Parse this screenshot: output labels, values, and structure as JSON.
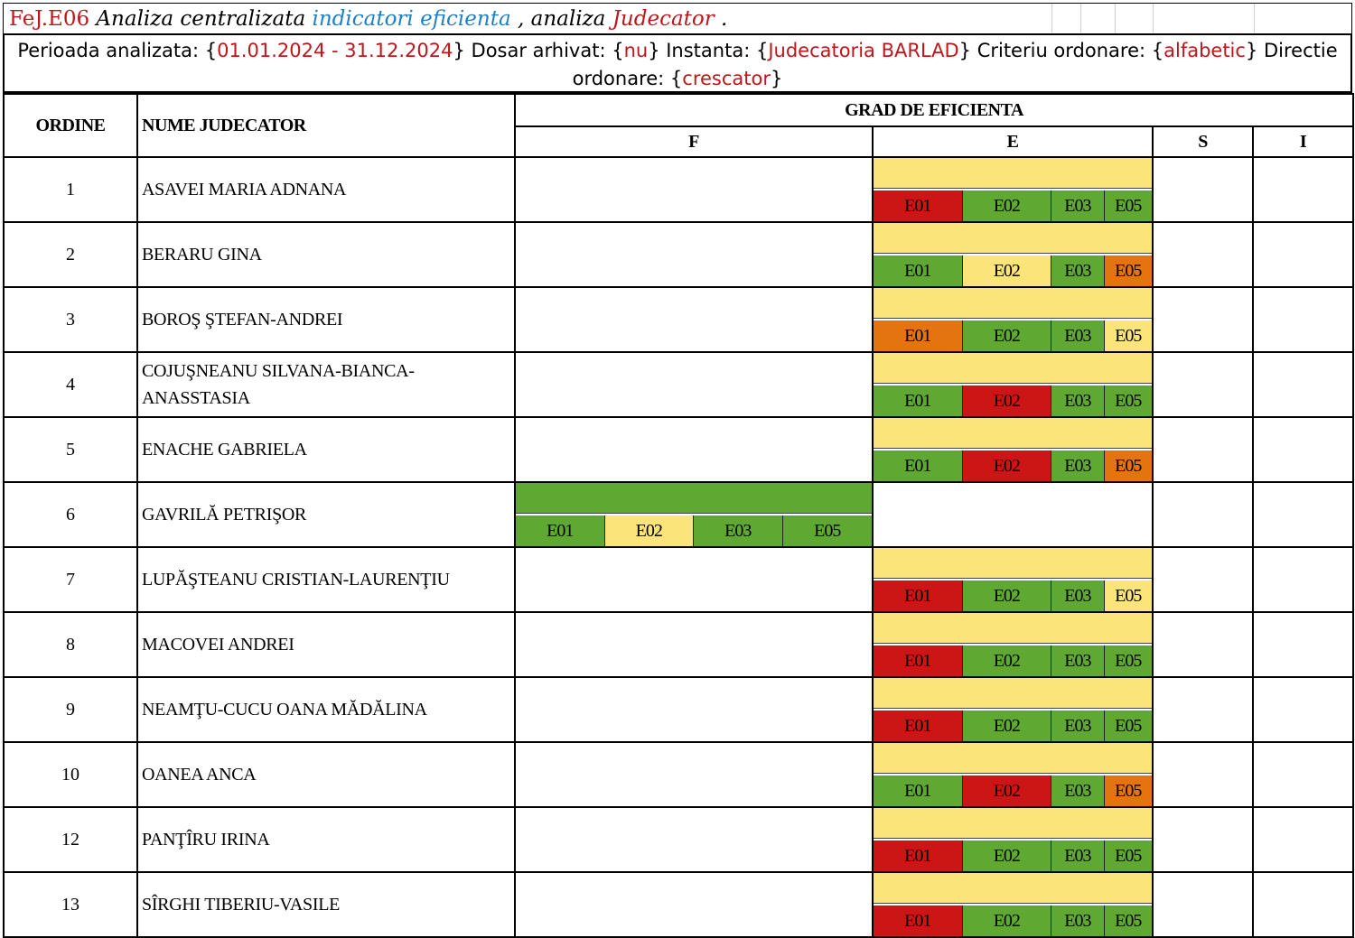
{
  "header": {
    "code": "FeJ.E06",
    "part1": " Analiza centralizata ",
    "part2": "indicatori eficienta",
    "part3": " , analiza ",
    "part4": "Judecator",
    "part5": " ."
  },
  "filters": {
    "perioada_label": "Perioada analizata: {",
    "perioada": "01.01.2024 - 31.12.2024",
    "dosar_label": "} Dosar arhivat: {",
    "dosar": "nu",
    "instanta_label": "} Instanta: {",
    "instanta": "Judecatoria BARLAD",
    "criteriu_label": "} Criteriu ordonare: {",
    "criteriu": "alfabetic",
    "directie_label": "} Directie ordonare: {",
    "directie": "crescator",
    "close": "}"
  },
  "table": {
    "col_ordine": "ORDINE",
    "col_nume": "NUME JUDECATOR",
    "col_grad": "GRAD DE EFICIENTA",
    "grades": [
      "F",
      "E",
      "S",
      "I"
    ]
  },
  "colors": {
    "green": "#5fa932",
    "yellow": "#fbe47a",
    "red": "#cc1515",
    "orange": "#e3740f"
  },
  "rows": [
    {
      "ordine": "1",
      "nume": "ASAVEI MARIA ADNANA",
      "grade": "E",
      "overall": "yellow",
      "indicators": [
        {
          "label": "E01",
          "color": "red"
        },
        {
          "label": "E02",
          "color": "green"
        },
        {
          "label": "E03",
          "color": "green"
        },
        {
          "label": "E05",
          "color": "green"
        }
      ]
    },
    {
      "ordine": "2",
      "nume": "BERARU GINA",
      "grade": "E",
      "overall": "yellow",
      "indicators": [
        {
          "label": "E01",
          "color": "green"
        },
        {
          "label": "E02",
          "color": "yellow"
        },
        {
          "label": "E03",
          "color": "green"
        },
        {
          "label": "E05",
          "color": "orange"
        }
      ]
    },
    {
      "ordine": "3",
      "nume": "BOROŞ ŞTEFAN-ANDREI",
      "grade": "E",
      "overall": "yellow",
      "indicators": [
        {
          "label": "E01",
          "color": "orange"
        },
        {
          "label": "E02",
          "color": "green"
        },
        {
          "label": "E03",
          "color": "green"
        },
        {
          "label": "E05",
          "color": "yellow"
        }
      ]
    },
    {
      "ordine": "4",
      "nume": "COJUŞNEANU SILVANA-BIANCA-ANASSTASIA",
      "grade": "E",
      "overall": "yellow",
      "indicators": [
        {
          "label": "E01",
          "color": "green"
        },
        {
          "label": "E02",
          "color": "red"
        },
        {
          "label": "E03",
          "color": "green"
        },
        {
          "label": "E05",
          "color": "green"
        }
      ]
    },
    {
      "ordine": "5",
      "nume": "ENACHE GABRIELA",
      "grade": "E",
      "overall": "yellow",
      "indicators": [
        {
          "label": "E01",
          "color": "green"
        },
        {
          "label": "E02",
          "color": "red"
        },
        {
          "label": "E03",
          "color": "green"
        },
        {
          "label": "E05",
          "color": "orange"
        }
      ]
    },
    {
      "ordine": "6",
      "nume": "GAVRILĂ PETRIŞOR",
      "grade": "F",
      "overall": "green",
      "indicators": [
        {
          "label": "E01",
          "color": "green"
        },
        {
          "label": "E02",
          "color": "yellow"
        },
        {
          "label": "E03",
          "color": "green"
        },
        {
          "label": "E05",
          "color": "green"
        }
      ]
    },
    {
      "ordine": "7",
      "nume": "LUPĂŞTEANU CRISTIAN-LAURENŢIU",
      "grade": "E",
      "overall": "yellow",
      "indicators": [
        {
          "label": "E01",
          "color": "red"
        },
        {
          "label": "E02",
          "color": "green"
        },
        {
          "label": "E03",
          "color": "green"
        },
        {
          "label": "E05",
          "color": "yellow"
        }
      ]
    },
    {
      "ordine": "8",
      "nume": "MACOVEI ANDREI",
      "grade": "E",
      "overall": "yellow",
      "indicators": [
        {
          "label": "E01",
          "color": "red"
        },
        {
          "label": "E02",
          "color": "green"
        },
        {
          "label": "E03",
          "color": "green"
        },
        {
          "label": "E05",
          "color": "green"
        }
      ]
    },
    {
      "ordine": "9",
      "nume": "NEAMŢU-CUCU OANA MĂDĂLINA",
      "grade": "E",
      "overall": "yellow",
      "indicators": [
        {
          "label": "E01",
          "color": "red"
        },
        {
          "label": "E02",
          "color": "green"
        },
        {
          "label": "E03",
          "color": "green"
        },
        {
          "label": "E05",
          "color": "green"
        }
      ]
    },
    {
      "ordine": "10",
      "nume": "OANEA ANCA",
      "grade": "E",
      "overall": "yellow",
      "indicators": [
        {
          "label": "E01",
          "color": "green"
        },
        {
          "label": "E02",
          "color": "red"
        },
        {
          "label": "E03",
          "color": "green"
        },
        {
          "label": "E05",
          "color": "orange"
        }
      ]
    },
    {
      "ordine": "12",
      "nume": "PANŢÎRU IRINA",
      "grade": "E",
      "overall": "yellow",
      "indicators": [
        {
          "label": "E01",
          "color": "red"
        },
        {
          "label": "E02",
          "color": "green"
        },
        {
          "label": "E03",
          "color": "green"
        },
        {
          "label": "E05",
          "color": "green"
        }
      ]
    },
    {
      "ordine": "13",
      "nume": "SÎRGHI TIBERIU-VASILE",
      "grade": "E",
      "overall": "yellow",
      "indicators": [
        {
          "label": "E01",
          "color": "red"
        },
        {
          "label": "E02",
          "color": "green"
        },
        {
          "label": "E03",
          "color": "green"
        },
        {
          "label": "E05",
          "color": "green"
        }
      ]
    }
  ]
}
